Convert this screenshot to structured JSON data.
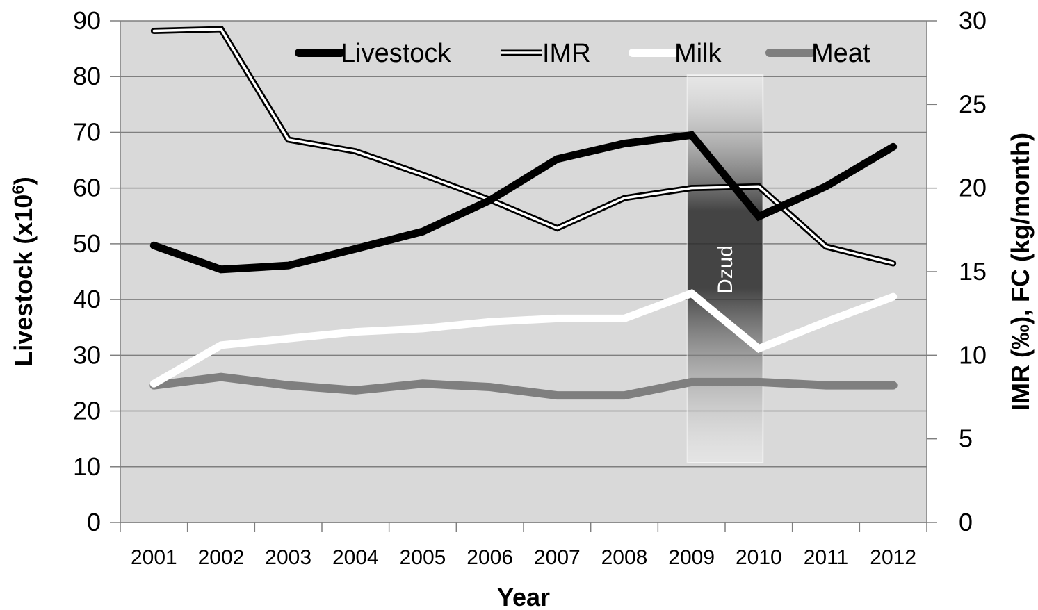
{
  "chart_data": {
    "type": "line",
    "categories": [
      "2001",
      "2002",
      "2003",
      "2004",
      "2005",
      "2006",
      "2007",
      "2008",
      "2009",
      "2010",
      "2011",
      "2012"
    ],
    "xlabel": "Year",
    "ylabel_left": "Livestock (x10",
    "ylabel_left_sup": "6",
    "ylabel_left_end": ")",
    "ylabel_right": "IMR (‰), FC (kg/month)",
    "ylim_left": [
      0,
      90
    ],
    "yticks_left": [
      "0",
      "10",
      "20",
      "30",
      "40",
      "50",
      "60",
      "70",
      "80",
      "90"
    ],
    "ylim_right": [
      0,
      30
    ],
    "yticks_right": [
      "0",
      "5",
      "10",
      "15",
      "20",
      "25",
      "30"
    ],
    "grid": true,
    "legend_position": "top",
    "series": [
      {
        "name": "Livestock",
        "axis": "left",
        "style": "thick-black",
        "values": [
          49.7,
          45.4,
          46.1,
          49.1,
          52.2,
          57.8,
          65.2,
          68.0,
          69.5,
          54.9,
          60.3,
          67.4
        ]
      },
      {
        "name": "IMR",
        "axis": "right",
        "style": "double-line",
        "values": [
          29.4,
          29.5,
          22.9,
          22.2,
          20.8,
          19.3,
          17.6,
          19.4,
          20.0,
          20.1,
          16.5,
          15.5
        ]
      },
      {
        "name": "Milk",
        "axis": "right",
        "style": "thick-white",
        "values": [
          8.3,
          10.6,
          11.0,
          11.4,
          11.6,
          12.0,
          12.2,
          12.2,
          13.7,
          10.4,
          12.0,
          13.5
        ]
      },
      {
        "name": "Meat",
        "axis": "right",
        "style": "thick-gray",
        "values": [
          8.2,
          8.7,
          8.2,
          7.9,
          8.3,
          8.1,
          7.6,
          7.6,
          8.4,
          8.4,
          8.2,
          8.2
        ]
      }
    ],
    "annotations": [
      {
        "label": "Dzud",
        "x_start": "2009",
        "x_end": "2010"
      }
    ],
    "colors": {
      "plot_background": "#d9d9d9",
      "grid": "#7f7f7f",
      "livestock": "#000000",
      "imr_outer": "#000000",
      "imr_inner": "#ffffff",
      "milk": "#ffffff",
      "meat": "#7f7f7f"
    }
  }
}
